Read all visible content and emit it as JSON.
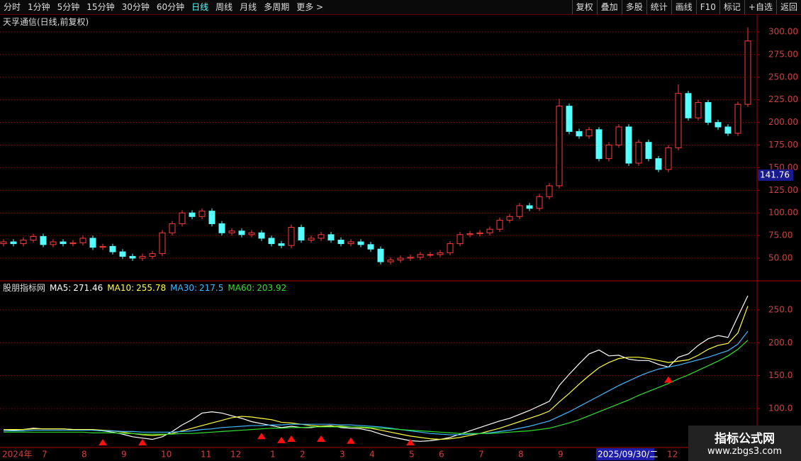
{
  "toolbar": {
    "left": [
      "分时",
      "1分钟",
      "5分钟",
      "15分钟",
      "30分钟",
      "60分钟",
      "日线",
      "周线",
      "月线",
      "多周期",
      "更多 >"
    ],
    "active": 6,
    "right": [
      "复权",
      "叠加",
      "多股",
      "统计",
      "画线",
      "F10",
      "标记",
      "+自选",
      "返回"
    ]
  },
  "chart_data": [
    {
      "type": "candlestick",
      "title": "天孚通信(日线,前复权)",
      "categories": [
        "2024年",
        null,
        null,
        null,
        "7",
        null,
        null,
        null,
        "8",
        null,
        null,
        null,
        "9",
        null,
        null,
        null,
        "10",
        null,
        null,
        null,
        "11",
        null,
        null,
        "12",
        null,
        null,
        null,
        "1",
        null,
        null,
        "2",
        null,
        null,
        null,
        "3",
        null,
        null,
        "4",
        null,
        null,
        null,
        "5",
        null,
        null,
        "6",
        null,
        null,
        null,
        "7",
        null,
        null,
        null,
        "8",
        null,
        null,
        null,
        "9",
        null,
        null,
        null,
        "2025/09/30/二",
        null,
        null,
        null,
        null,
        null,
        null,
        "12",
        null,
        null,
        null,
        null,
        null,
        null,
        null,
        null
      ],
      "highlight": 60,
      "open": [
        66,
        68,
        66,
        70,
        74,
        65,
        68,
        66,
        67,
        72,
        62,
        63,
        57,
        52,
        50,
        52,
        55,
        78,
        88,
        100,
        96,
        102,
        88,
        78,
        80,
        76,
        78,
        72,
        66,
        64,
        84,
        70,
        72,
        76,
        70,
        66,
        68,
        65,
        60,
        46,
        48,
        50,
        51,
        54,
        54,
        56,
        66,
        76,
        77,
        78,
        82,
        92,
        96,
        108,
        105,
        118,
        130,
        218,
        190,
        185,
        192,
        160,
        175,
        195,
        155,
        178,
        160,
        148,
        172,
        232,
        205,
        222,
        200,
        195,
        188,
        220
      ],
      "high": [
        71,
        71,
        73,
        77,
        77,
        71,
        71,
        70,
        75,
        75,
        66,
        66,
        60,
        55,
        55,
        58,
        81,
        91,
        103,
        103,
        105,
        105,
        91,
        83,
        83,
        81,
        81,
        75,
        69,
        87,
        87,
        75,
        79,
        79,
        73,
        71,
        71,
        68,
        63,
        51,
        53,
        54,
        57,
        57,
        59,
        69,
        79,
        80,
        81,
        85,
        95,
        99,
        111,
        111,
        121,
        133,
        226,
        221,
        193,
        195,
        195,
        178,
        198,
        198,
        181,
        181,
        163,
        175,
        242,
        235,
        225,
        225,
        203,
        198,
        223,
        305
      ],
      "low": [
        63,
        63,
        63,
        67,
        62,
        62,
        63,
        63,
        64,
        59,
        59,
        54,
        49,
        47,
        47,
        49,
        52,
        75,
        85,
        93,
        93,
        85,
        75,
        75,
        73,
        73,
        69,
        63,
        61,
        61,
        67,
        67,
        69,
        67,
        63,
        63,
        62,
        57,
        43,
        43,
        45,
        47,
        48,
        51,
        51,
        53,
        63,
        73,
        74,
        75,
        79,
        89,
        93,
        102,
        102,
        115,
        127,
        187,
        182,
        182,
        157,
        157,
        172,
        152,
        152,
        157,
        145,
        145,
        169,
        202,
        202,
        197,
        192,
        185,
        185,
        217
      ],
      "close": [
        68,
        66,
        70,
        74,
        65,
        68,
        66,
        67,
        72,
        62,
        63,
        57,
        52,
        50,
        52,
        55,
        78,
        88,
        100,
        96,
        102,
        88,
        78,
        80,
        76,
        78,
        72,
        66,
        64,
        84,
        70,
        72,
        76,
        70,
        66,
        68,
        65,
        60,
        46,
        48,
        50,
        51,
        54,
        54,
        56,
        66,
        76,
        77,
        78,
        82,
        92,
        96,
        108,
        105,
        118,
        130,
        218,
        190,
        185,
        192,
        160,
        175,
        195,
        155,
        178,
        160,
        148,
        172,
        232,
        205,
        222,
        200,
        195,
        188,
        220,
        290
      ],
      "up_color": "#ff3c3c",
      "down_color": "#54ffff",
      "ylim": [
        25.7,
        305.5
      ],
      "yticks": [
        {
          "value": 50,
          "label": "50.00"
        },
        {
          "value": 75,
          "label": "75.00"
        },
        {
          "value": 100,
          "label": "100.00"
        },
        {
          "value": 125,
          "label": "125.00"
        },
        {
          "value": 150,
          "label": "150.00"
        },
        {
          "value": 175,
          "label": "175.00"
        },
        {
          "value": 200,
          "label": "200.00"
        },
        {
          "value": 225,
          "label": "225.00"
        },
        {
          "value": 250,
          "label": "250.00"
        },
        {
          "value": 275,
          "label": "275.00"
        },
        {
          "value": 300,
          "label": "300.00"
        }
      ],
      "cursor_value": 141.76,
      "grid": true
    },
    {
      "type": "line",
      "title": "股朋指标网",
      "series": [
        {
          "name": "MA5:",
          "color": "#ffffff",
          "values": [
            68,
            67,
            68,
            70,
            69,
            69,
            69,
            68,
            68,
            67,
            66,
            64,
            61,
            57,
            55,
            53,
            57,
            65,
            75,
            83,
            93,
            95,
            93,
            89,
            85,
            80,
            77,
            74,
            71,
            73,
            71,
            71,
            73,
            74,
            71,
            70,
            69,
            66,
            61,
            57,
            54,
            51,
            50,
            51,
            53,
            56,
            61,
            66,
            71,
            76,
            81,
            85,
            91,
            97,
            104,
            111,
            135,
            152,
            168,
            183,
            189,
            180,
            181,
            175,
            173,
            173,
            167,
            163,
            178,
            183,
            196,
            206,
            211,
            208,
            240,
            271.46
          ]
        },
        {
          "name": "MA10:",
          "color": "#ffff3c",
          "values": [
            68,
            68,
            68,
            69,
            69,
            69,
            69,
            68,
            68,
            68,
            67,
            66,
            64,
            62,
            60,
            59,
            60,
            62,
            66,
            70,
            74,
            78,
            82,
            86,
            88,
            87,
            85,
            83,
            79,
            78,
            76,
            74,
            73,
            73,
            73,
            72,
            71,
            70,
            67,
            64,
            61,
            58,
            56,
            54,
            53,
            54,
            56,
            59,
            62,
            66,
            70,
            75,
            80,
            85,
            90,
            96,
            110,
            123,
            137,
            150,
            162,
            170,
            176,
            178,
            178,
            176,
            173,
            170,
            172,
            174,
            181,
            190,
            196,
            199,
            215,
            255.78
          ]
        },
        {
          "name": "MA30:",
          "color": "#40b8ff",
          "values": [
            66,
            66,
            66,
            67,
            67,
            67,
            67,
            67,
            67,
            67,
            66,
            66,
            65,
            65,
            64,
            64,
            64,
            64,
            65,
            66,
            68,
            69,
            71,
            72,
            73,
            74,
            74,
            75,
            75,
            76,
            76,
            76,
            76,
            76,
            75,
            75,
            74,
            73,
            72,
            70,
            68,
            66,
            64,
            62,
            61,
            60,
            60,
            61,
            62,
            63,
            65,
            67,
            70,
            73,
            77,
            81,
            88,
            95,
            103,
            111,
            119,
            127,
            135,
            142,
            149,
            155,
            160,
            163,
            166,
            170,
            174,
            178,
            183,
            188,
            198,
            217.5
          ]
        },
        {
          "name": "MA60:",
          "color": "#2ee02e",
          "values": [
            64,
            64,
            64,
            64,
            64,
            64,
            64,
            64,
            64,
            63,
            63,
            63,
            62,
            62,
            61,
            61,
            61,
            61,
            62,
            62,
            63,
            64,
            65,
            66,
            67,
            68,
            69,
            70,
            70,
            71,
            71,
            72,
            72,
            72,
            72,
            72,
            72,
            71,
            70,
            69,
            68,
            67,
            66,
            65,
            64,
            63,
            62,
            62,
            62,
            62,
            63,
            64,
            65,
            66,
            68,
            70,
            74,
            78,
            83,
            89,
            95,
            101,
            107,
            113,
            120,
            126,
            132,
            138,
            145,
            151,
            158,
            165,
            172,
            180,
            190,
            203.92
          ]
        }
      ],
      "signals": [
        10,
        14,
        26,
        28,
        29,
        32,
        35,
        41,
        67
      ],
      "signal_color": "#ff1010",
      "ylim": [
        41.7,
        292
      ],
      "yticks": [
        {
          "value": 100,
          "label": "100.0"
        },
        {
          "value": 150,
          "label": "150.0"
        },
        {
          "value": 200,
          "label": "200.0"
        },
        {
          "value": 250,
          "label": "250.0"
        }
      ],
      "grid": true
    }
  ],
  "watermark": {
    "title": "指标公式网",
    "url": "www.zbgs3.com"
  }
}
